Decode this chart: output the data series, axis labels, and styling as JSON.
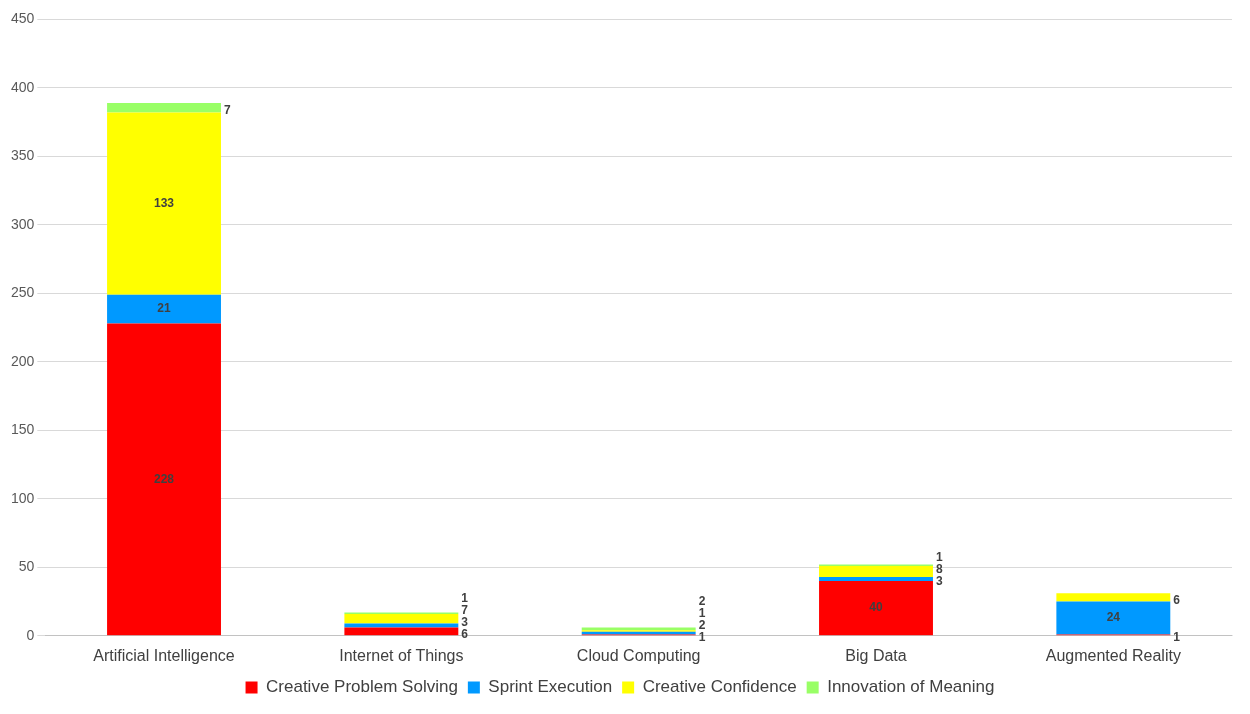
{
  "chart_data": {
    "type": "bar",
    "stacked": true,
    "categories": [
      "Artificial Intelligence",
      "Internet of Things",
      "Cloud Computing",
      "Big Data",
      "Augmented Reality"
    ],
    "series": [
      {
        "name": "Creative Problem Solving",
        "color": "#ff0000",
        "values": [
          228,
          6,
          1,
          40,
          1
        ]
      },
      {
        "name": "Sprint Execution",
        "color": "#0099ff",
        "values": [
          21,
          3,
          2,
          3,
          24
        ]
      },
      {
        "name": "Creative Confidence",
        "color": "#ffff00",
        "values": [
          133,
          7,
          1,
          8,
          6
        ]
      },
      {
        "name": "Innovation of Meaning",
        "color": "#99ff66",
        "values": [
          7,
          1,
          2,
          1,
          null
        ]
      }
    ],
    "ylim": [
      0,
      450
    ],
    "yticks": [
      0,
      50,
      100,
      150,
      200,
      250,
      300,
      350,
      400,
      450
    ],
    "grid": "y",
    "legend": "bottom",
    "data_labels": true
  }
}
